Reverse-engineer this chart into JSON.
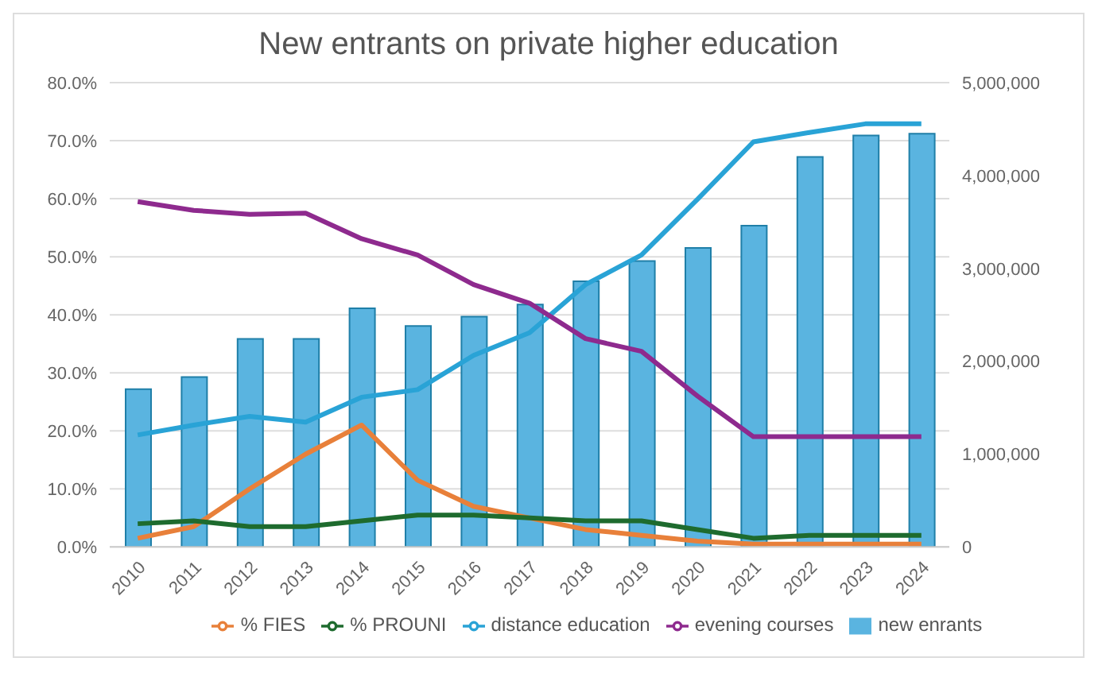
{
  "chart_data": {
    "type": "line",
    "title": "New entrants on private higher education",
    "categories": [
      "2010",
      "2011",
      "2012",
      "2013",
      "2014",
      "2015",
      "2016",
      "2017",
      "2018",
      "2019",
      "2020",
      "2021",
      "2022",
      "2023",
      "2024"
    ],
    "series": [
      {
        "name": "new enrants",
        "type": "bar",
        "axis": "y2",
        "color": "#5ab4e0",
        "values": [
          1700000,
          1830000,
          2240000,
          2240000,
          2570000,
          2380000,
          2480000,
          2610000,
          2860000,
          3080000,
          3220000,
          3460000,
          4200000,
          4430000,
          4450000
        ]
      },
      {
        "name": "% FIES",
        "color": "#e8803a",
        "values": [
          1.5,
          3.5,
          10,
          16,
          21,
          11.5,
          7,
          5,
          3,
          2,
          1,
          0.5,
          0.5,
          0.5,
          0.5
        ]
      },
      {
        "name": "% PROUNI",
        "color": "#1e6b2e",
        "values": [
          4,
          4.5,
          3.5,
          3.5,
          4.5,
          5.5,
          5.5,
          5,
          4.5,
          4.5,
          3,
          1.5,
          2,
          2,
          2
        ]
      },
      {
        "name": "distance education",
        "color": "#29a3d6",
        "values": [
          19.3,
          21,
          22.5,
          21.5,
          25.8,
          27.1,
          33,
          36.9,
          45.2,
          50.3,
          59.9,
          69.8,
          71.4,
          72.9,
          72.9
        ]
      },
      {
        "name": "evening courses",
        "color": "#8e2a8e",
        "values": [
          59.5,
          58,
          57.3,
          57.5,
          53.1,
          50.3,
          45.2,
          42,
          35.9,
          33.7,
          26,
          19,
          19,
          19,
          19
        ]
      }
    ],
    "ylim": [
      0,
      80
    ],
    "yticks": [
      {
        "value": 0,
        "label": "0.0%"
      },
      {
        "value": 10,
        "label": "10.0%"
      },
      {
        "value": 20,
        "label": "20.0%"
      },
      {
        "value": 30,
        "label": "30.0%"
      },
      {
        "value": 40,
        "label": "40.0%"
      },
      {
        "value": 50,
        "label": "50.0%"
      },
      {
        "value": 60,
        "label": "60.0%"
      },
      {
        "value": 70,
        "label": "70.0%"
      },
      {
        "value": 80,
        "label": "80.0%"
      }
    ],
    "y2lim": [
      0,
      5000000
    ],
    "y2ticks": [
      {
        "value": 0,
        "label": "0"
      },
      {
        "value": 1000000,
        "label": "1,000,000"
      },
      {
        "value": 2000000,
        "label": "2,000,000"
      },
      {
        "value": 3000000,
        "label": "3,000,000"
      },
      {
        "value": 4000000,
        "label": "4,000,000"
      },
      {
        "value": 5000000,
        "label": "5,000,000"
      }
    ],
    "grid": "y",
    "legend": "bottom",
    "marker": "none"
  }
}
